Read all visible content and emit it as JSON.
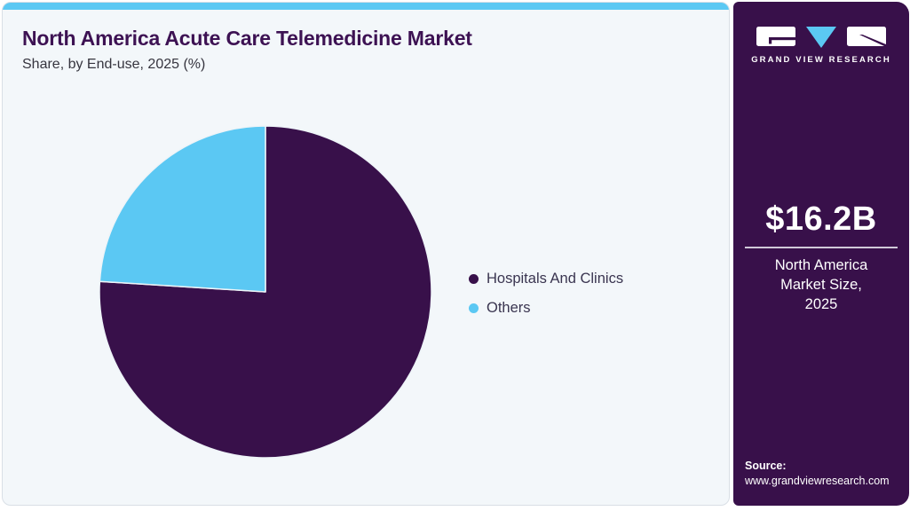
{
  "page": {
    "background": "#ffffff",
    "accent_blue": "#5bc8f3",
    "brand_purple": "#38104a"
  },
  "header": {
    "title": "North America Acute Care Telemedicine Market",
    "subtitle": "Share, by End-use, 2025 (%)"
  },
  "chart_data": {
    "type": "pie",
    "title": "North America Acute Care Telemedicine Market Share, by End-use, 2025 (%)",
    "unit": "%",
    "slices": [
      {
        "label": "Hospitals And Clinics",
        "value": 76,
        "color": "#38104a"
      },
      {
        "label": "Others",
        "value": 24,
        "color": "#5bc8f3"
      }
    ],
    "start_angle_deg": 0,
    "direction": "clockwise",
    "legend_position": "right",
    "data_labels": false
  },
  "sidebar": {
    "logo": {
      "brand_name": "GRAND VIEW RESEARCH"
    },
    "market_size": {
      "value": "$16.2B",
      "caption": "North America\nMarket Size,\n2025"
    },
    "source": {
      "label": "Source:",
      "url": "www.grandviewresearch.com"
    }
  }
}
